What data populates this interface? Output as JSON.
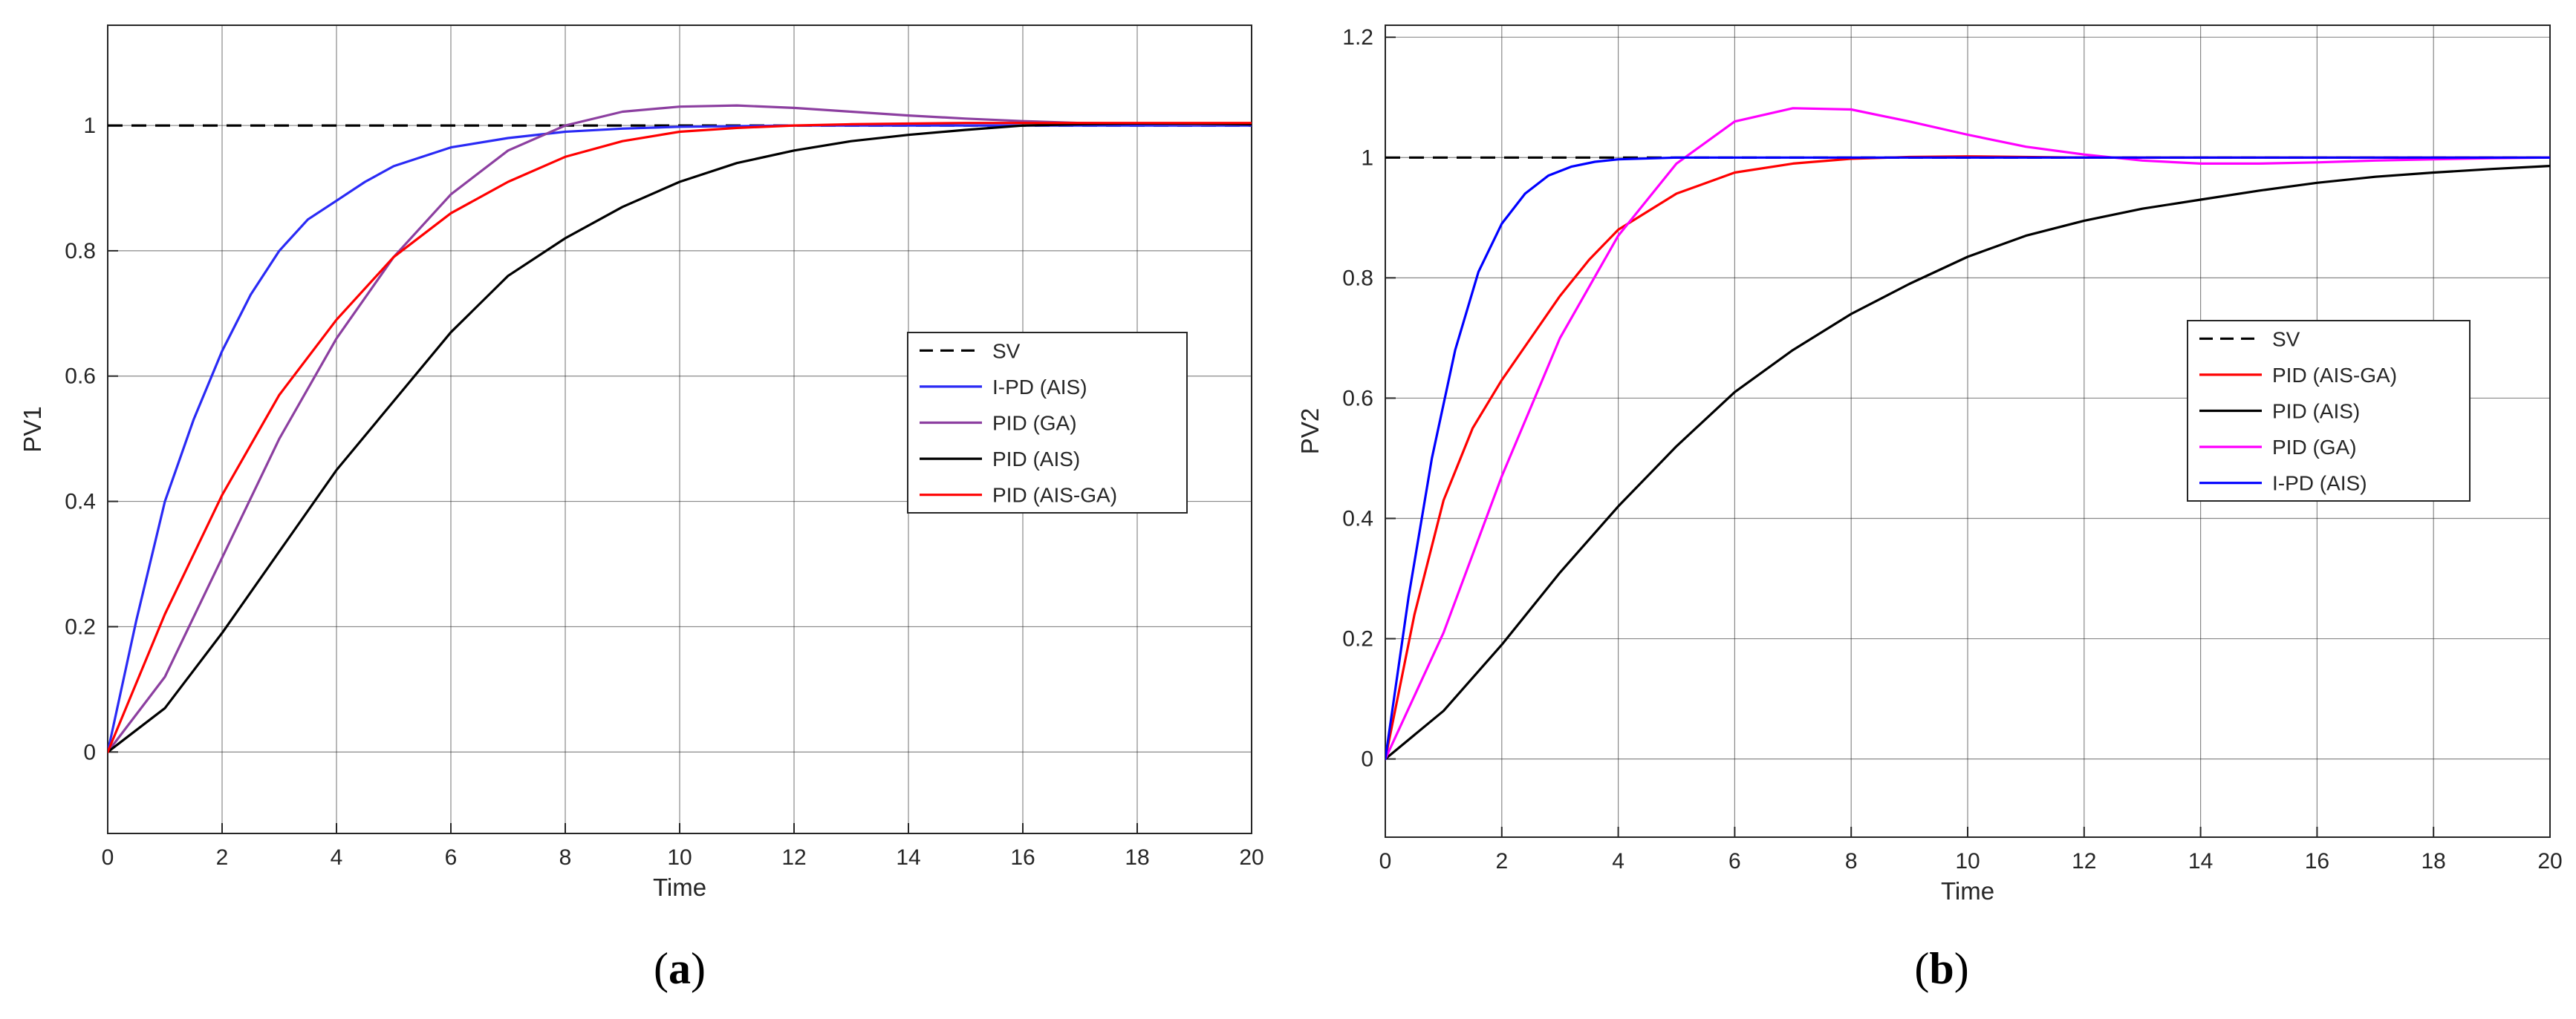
{
  "chart_data": [
    {
      "type": "line",
      "panel_label": "(a)",
      "panel_letter": "a",
      "xlabel": "Time",
      "ylabel": "PV1",
      "xlim": [
        0,
        20
      ],
      "ylim": [
        -0.13,
        1.16
      ],
      "xticks": [
        0,
        2,
        4,
        6,
        8,
        10,
        12,
        14,
        16,
        18,
        20
      ],
      "yticks": [
        0,
        0.2,
        0.4,
        0.6,
        0.8,
        1
      ],
      "xtick_labels": [
        "0",
        "2",
        "4",
        "6",
        "8",
        "10",
        "12",
        "14",
        "16",
        "18",
        "20"
      ],
      "ytick_labels": [
        "0",
        "0.2",
        "0.4",
        "0.6",
        "0.8",
        "1"
      ],
      "grid": true,
      "legend_position": "right-center",
      "series": [
        {
          "name": "SV",
          "color": "#000000",
          "dash": "dashed",
          "x": [
            0,
            20
          ],
          "y": [
            1,
            1
          ]
        },
        {
          "name": "I-PD (AIS)",
          "color": "#2a2af5",
          "dash": "solid",
          "x": [
            0,
            0.5,
            1,
            1.5,
            2,
            2.5,
            3,
            3.5,
            4,
            4.5,
            5,
            6,
            7,
            8,
            9,
            10,
            12,
            14,
            16,
            18,
            20
          ],
          "y": [
            0,
            0.21,
            0.4,
            0.53,
            0.64,
            0.73,
            0.8,
            0.85,
            0.88,
            0.91,
            0.935,
            0.965,
            0.98,
            0.99,
            0.995,
            0.998,
            1.0,
            1.0,
            1.0,
            1.0,
            1.0
          ]
        },
        {
          "name": "PID (GA)",
          "color": "#8c3fa0",
          "dash": "solid",
          "x": [
            0,
            1,
            2,
            3,
            4,
            5,
            6,
            7,
            8,
            9,
            10,
            11,
            12,
            13,
            14,
            15,
            16,
            17,
            18,
            19,
            20
          ],
          "y": [
            0,
            0.12,
            0.31,
            0.5,
            0.66,
            0.79,
            0.89,
            0.96,
            1.0,
            1.022,
            1.03,
            1.032,
            1.028,
            1.022,
            1.016,
            1.011,
            1.007,
            1.004,
            1.003,
            1.002,
            1.002
          ]
        },
        {
          "name": "PID (AIS)",
          "color": "#000000",
          "dash": "solid",
          "x": [
            0,
            1,
            2,
            3,
            4,
            5,
            6,
            7,
            8,
            9,
            10,
            11,
            12,
            13,
            14,
            15,
            16,
            17,
            18,
            19,
            20
          ],
          "y": [
            0,
            0.07,
            0.19,
            0.32,
            0.45,
            0.56,
            0.67,
            0.76,
            0.82,
            0.87,
            0.91,
            0.94,
            0.96,
            0.975,
            0.985,
            0.993,
            1.0,
            1.002,
            1.003,
            1.003,
            1.002
          ]
        },
        {
          "name": "PID (AIS-GA)",
          "color": "#ff0000",
          "dash": "solid",
          "x": [
            0,
            1,
            2,
            3,
            4,
            5,
            6,
            7,
            8,
            9,
            10,
            11,
            12,
            13,
            14,
            15,
            16,
            17,
            18,
            19,
            20
          ],
          "y": [
            0,
            0.22,
            0.41,
            0.57,
            0.69,
            0.79,
            0.86,
            0.91,
            0.95,
            0.975,
            0.99,
            0.996,
            1.0,
            1.002,
            1.003,
            1.004,
            1.004,
            1.004,
            1.004,
            1.004,
            1.004
          ]
        }
      ]
    },
    {
      "type": "line",
      "panel_label": "(b)",
      "panel_letter": "b",
      "xlabel": "Time",
      "ylabel": "PV2",
      "xlim": [
        0,
        20
      ],
      "ylim": [
        -0.13,
        1.22
      ],
      "xticks": [
        0,
        2,
        4,
        6,
        8,
        10,
        12,
        14,
        16,
        18,
        20
      ],
      "yticks": [
        0,
        0.2,
        0.4,
        0.6,
        0.8,
        1,
        1.2
      ],
      "xtick_labels": [
        "0",
        "2",
        "4",
        "6",
        "8",
        "10",
        "12",
        "14",
        "16",
        "18",
        "20"
      ],
      "ytick_labels": [
        "0",
        "0.2",
        "0.4",
        "0.6",
        "0.8",
        "1",
        "1.2"
      ],
      "grid": true,
      "legend_position": "right-center",
      "series": [
        {
          "name": "SV",
          "color": "#000000",
          "dash": "dashed",
          "x": [
            0,
            20
          ],
          "y": [
            1,
            1
          ]
        },
        {
          "name": "PID (AIS-GA)",
          "color": "#ff0000",
          "dash": "solid",
          "x": [
            0,
            0.5,
            1,
            1.5,
            2,
            2.5,
            3,
            3.5,
            4,
            5,
            6,
            7,
            8,
            9,
            10,
            12,
            14,
            16,
            18,
            20
          ],
          "y": [
            0,
            0.24,
            0.43,
            0.55,
            0.63,
            0.7,
            0.77,
            0.83,
            0.88,
            0.94,
            0.975,
            0.99,
            0.998,
            1.001,
            1.002,
            1.0,
            1.0,
            1.0,
            1.0,
            1.0
          ]
        },
        {
          "name": "PID (AIS)",
          "color": "#000000",
          "dash": "solid",
          "x": [
            0,
            1,
            2,
            3,
            4,
            5,
            6,
            7,
            8,
            9,
            10,
            11,
            12,
            13,
            14,
            15,
            16,
            17,
            18,
            19,
            20
          ],
          "y": [
            0,
            0.08,
            0.19,
            0.31,
            0.42,
            0.52,
            0.61,
            0.68,
            0.74,
            0.79,
            0.835,
            0.87,
            0.895,
            0.915,
            0.93,
            0.945,
            0.958,
            0.968,
            0.975,
            0.981,
            0.986
          ]
        },
        {
          "name": "PID (GA)",
          "color": "#ff00ff",
          "dash": "solid",
          "x": [
            0,
            1,
            2,
            3,
            4,
            5,
            6,
            7,
            8,
            9,
            10,
            11,
            12,
            13,
            14,
            15,
            16,
            17,
            18,
            19,
            20
          ],
          "y": [
            0,
            0.21,
            0.47,
            0.7,
            0.87,
            0.99,
            1.06,
            1.082,
            1.08,
            1.06,
            1.038,
            1.018,
            1.005,
            0.995,
            0.99,
            0.99,
            0.992,
            0.995,
            0.997,
            0.999,
            1.0
          ]
        },
        {
          "name": "I-PD (AIS)",
          "color": "#0000ff",
          "dash": "solid",
          "x": [
            0,
            0.4,
            0.8,
            1.2,
            1.6,
            2,
            2.4,
            2.8,
            3.2,
            3.6,
            4,
            5,
            6,
            8,
            10,
            12,
            14,
            16,
            18,
            20
          ],
          "y": [
            0,
            0.27,
            0.5,
            0.68,
            0.81,
            0.89,
            0.94,
            0.97,
            0.985,
            0.993,
            0.997,
            1.0,
            1.0,
            1.0,
            1.0,
            1.0,
            1.0,
            1.0,
            1.0,
            1.0
          ]
        }
      ]
    }
  ]
}
